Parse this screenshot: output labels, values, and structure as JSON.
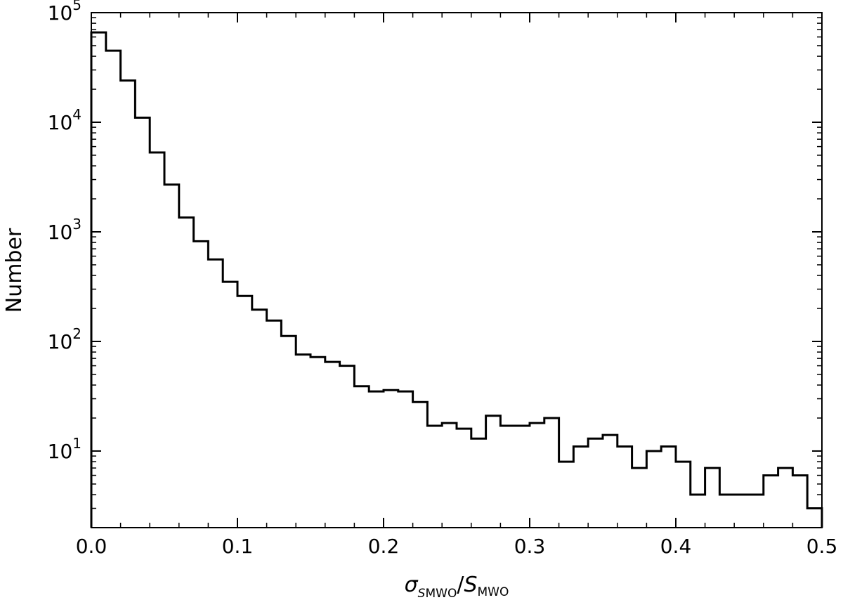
{
  "chart_data": {
    "type": "histogram",
    "xlabel": {
      "sigma": "σ",
      "sub_s": "S",
      "sub_mwo": "MWO",
      "slash": "/",
      "s": "S",
      "mwo": "MWO"
    },
    "ylabel": "Number",
    "y_scale": "log",
    "xlim": [
      0.0,
      0.5
    ],
    "ylim": [
      2,
      100000
    ],
    "x_ticks": [
      {
        "value": 0.0,
        "label": "0.0"
      },
      {
        "value": 0.1,
        "label": "0.1"
      },
      {
        "value": 0.2,
        "label": "0.2"
      },
      {
        "value": 0.3,
        "label": "0.3"
      },
      {
        "value": 0.4,
        "label": "0.4"
      },
      {
        "value": 0.5,
        "label": "0.5"
      }
    ],
    "y_ticks": [
      {
        "value": 10,
        "base": "10",
        "exp": "1"
      },
      {
        "value": 100,
        "base": "10",
        "exp": "2"
      },
      {
        "value": 1000,
        "base": "10",
        "exp": "3"
      },
      {
        "value": 10000,
        "base": "10",
        "exp": "4"
      },
      {
        "value": 100000,
        "base": "10",
        "exp": "5"
      }
    ],
    "bin_width": 0.01,
    "bin_start": 0.0,
    "counts": [
      66000,
      45000,
      24000,
      11000,
      5300,
      2700,
      1350,
      820,
      560,
      350,
      260,
      195,
      155,
      112,
      76,
      72,
      65,
      60,
      39,
      35,
      36,
      35,
      28,
      17,
      18,
      16,
      13,
      21,
      17,
      17,
      18,
      20,
      8,
      11,
      13,
      14,
      11,
      7,
      10,
      11,
      8,
      4,
      7,
      4,
      4,
      4,
      6,
      7,
      6,
      3
    ],
    "line_color": "#000000",
    "grid": false,
    "legend": "none"
  }
}
